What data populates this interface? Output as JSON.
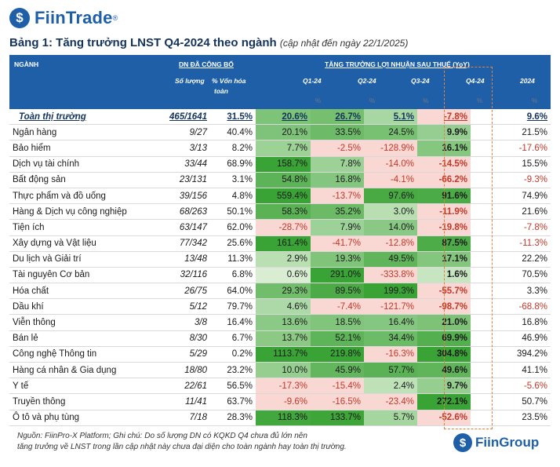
{
  "brand": {
    "logo_text": "FiinTrade",
    "tm": "®",
    "footer_logo": "FiinGroup",
    "logo_icon": "dollar-circle-icon"
  },
  "title": {
    "main": "Bảng 1: Tăng trưởng LNST Q4-2024 theo ngành",
    "sub": "(cập nhật đến ngày 22/1/2025)"
  },
  "header": {
    "col_sector": "NGÀNH",
    "group_dn": "DN ĐÃ CÔNG BỐ",
    "col_count": "Số lượng",
    "col_cap_l1": "% Vốn hóa",
    "col_cap_l2": "toàn",
    "group_growth": "TĂNG TRƯỞNG LỢI NHUẬN SAU THUẾ (YoY)",
    "q1": "Q1-24",
    "q2": "Q2-24",
    "q3": "Q3-24",
    "q4": "Q4-24",
    "y": "2024",
    "unit": "%"
  },
  "total": {
    "name": "Toàn thị trường",
    "count": "465/1641",
    "cap": "31.5%",
    "q1": "20.6%",
    "q2": "26.7%",
    "q3": "5.1%",
    "q4": "-7.8%",
    "y": "9.6%"
  },
  "rows": [
    {
      "name": "Ngân hàng",
      "count": "9/27",
      "cap": "40.4%",
      "q1": "20.1%",
      "q2": "33.5%",
      "q3": "24.5%",
      "q4": "9.9%",
      "y": "21.5%"
    },
    {
      "name": "Bảo hiểm",
      "count": "3/13",
      "cap": "8.2%",
      "q1": "7.7%",
      "q2": "-2.5%",
      "q3": "-128.9%",
      "q4": "16.1%",
      "y": "-17.6%"
    },
    {
      "name": "Dịch vụ tài chính",
      "count": "33/44",
      "cap": "68.9%",
      "q1": "158.7%",
      "q2": "7.8%",
      "q3": "-14.0%",
      "q4": "-14.5%",
      "y": "15.5%"
    },
    {
      "name": "Bất động sản",
      "count": "23/131",
      "cap": "3.1%",
      "q1": "54.8%",
      "q2": "16.8%",
      "q3": "-4.1%",
      "q4": "-66.2%",
      "y": "-9.3%"
    },
    {
      "name": "Thực phẩm và đồ uống",
      "count": "39/156",
      "cap": "4.8%",
      "q1": "559.4%",
      "q2": "-13.7%",
      "q3": "97.6%",
      "q4": "91.6%",
      "y": "74.9%"
    },
    {
      "name": "Hàng & Dịch vụ công nghiệp",
      "count": "68/263",
      "cap": "50.1%",
      "q1": "58.3%",
      "q2": "35.2%",
      "q3": "3.0%",
      "q4": "-11.9%",
      "y": "21.6%"
    },
    {
      "name": "Tiện ích",
      "count": "63/147",
      "cap": "62.0%",
      "q1": "-28.7%",
      "q2": "7.9%",
      "q3": "14.0%",
      "q4": "-19.8%",
      "y": "-7.8%"
    },
    {
      "name": "Xây dựng và Vật liệu",
      "count": "77/342",
      "cap": "25.6%",
      "q1": "161.4%",
      "q2": "-41.7%",
      "q3": "-12.8%",
      "q4": "87.5%",
      "y": "-11.3%"
    },
    {
      "name": "Du lịch và Giải trí",
      "count": "13/48",
      "cap": "11.3%",
      "q1": "2.9%",
      "q2": "19.3%",
      "q3": "49.5%",
      "q4": "17.1%",
      "y": "22.2%"
    },
    {
      "name": "Tài nguyên Cơ bản",
      "count": "32/116",
      "cap": "6.8%",
      "q1": "0.6%",
      "q2": "291.0%",
      "q3": "-333.8%",
      "q4": "1.6%",
      "y": "70.5%"
    },
    {
      "name": "Hóa chất",
      "count": "26/75",
      "cap": "64.0%",
      "q1": "29.3%",
      "q2": "89.5%",
      "q3": "199.3%",
      "q4": "-55.7%",
      "y": "3.3%"
    },
    {
      "name": "Dầu khí",
      "count": "5/12",
      "cap": "79.7%",
      "q1": "4.6%",
      "q2": "-7.4%",
      "q3": "-121.7%",
      "q4": "-98.7%",
      "y": "-68.8%"
    },
    {
      "name": "Viễn thông",
      "count": "3/8",
      "cap": "16.4%",
      "q1": "13.6%",
      "q2": "18.5%",
      "q3": "16.4%",
      "q4": "21.0%",
      "y": "16.8%"
    },
    {
      "name": "Bán lẻ",
      "count": "8/30",
      "cap": "6.7%",
      "q1": "13.7%",
      "q2": "52.1%",
      "q3": "34.4%",
      "q4": "69.9%",
      "y": "46.9%"
    },
    {
      "name": "Công nghệ Thông tin",
      "count": "5/29",
      "cap": "0.2%",
      "q1": "1113.7%",
      "q2": "219.8%",
      "q3": "-16.3%",
      "q4": "304.8%",
      "y": "394.2%"
    },
    {
      "name": "Hàng cá nhân & Gia dụng",
      "count": "18/80",
      "cap": "23.2%",
      "q1": "10.0%",
      "q2": "45.9%",
      "q3": "57.7%",
      "q4": "49.6%",
      "y": "41.1%"
    },
    {
      "name": "Y tế",
      "count": "22/61",
      "cap": "56.5%",
      "q1": "-17.3%",
      "q2": "-15.4%",
      "q3": "2.4%",
      "q4": "9.7%",
      "y": "-5.6%"
    },
    {
      "name": "Truyền thông",
      "count": "11/41",
      "cap": "63.7%",
      "q1": "-9.6%",
      "q2": "-16.5%",
      "q3": "-23.4%",
      "q4": "272.1%",
      "y": "50.7%"
    },
    {
      "name": "Ô tô và phụ tùng",
      "count": "7/18",
      "cap": "28.3%",
      "q1": "118.3%",
      "q2": "133.7%",
      "q3": "5.7%",
      "q4": "-52.6%",
      "y": "23.5%"
    }
  ],
  "note": {
    "line1": "Nguồn: FiinPro-X Platform; Ghi chú: Do số lượng DN có KQKD Q4 chưa đủ lớn nên",
    "line2": "tăng trưởng về LNST trong lần cập nhật này chưa đại diện cho toàn ngành hay toàn thị trường."
  },
  "colors": {
    "header": "#1f5fa8",
    "pos_max": "#3aa335",
    "pos_light": "#e8f5e2",
    "neg": "#f9d7d2",
    "neg_text": "#c0392b",
    "highlight_box": "#e4813a"
  }
}
